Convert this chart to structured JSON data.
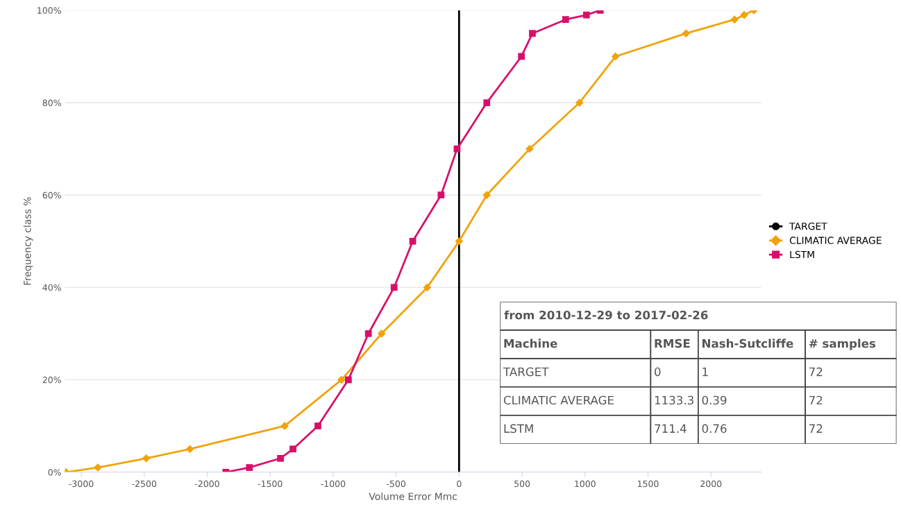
{
  "chart_data": {
    "type": "line",
    "xlabel": "Volume Error Mmc",
    "ylabel": "Frequency class %",
    "xlim": [
      -3130,
      2400
    ],
    "xticks": [
      -3000,
      -2500,
      -2000,
      -1500,
      -1000,
      -500,
      0,
      500,
      1000,
      1500,
      2000
    ],
    "ylim": [
      0,
      100
    ],
    "yticks": [
      {
        "value": 0,
        "label": "0%"
      },
      {
        "value": 20,
        "label": "20%"
      },
      {
        "value": 40,
        "label": "40%"
      },
      {
        "value": 60,
        "label": "60%"
      },
      {
        "value": 80,
        "label": "80%"
      },
      {
        "value": 100,
        "label": "100%"
      }
    ],
    "grid": "y",
    "legend": "right",
    "series": [
      {
        "name": "TARGET",
        "color": "#000000",
        "marker": "none",
        "x": [
          0,
          0
        ],
        "values": [
          0,
          100
        ]
      },
      {
        "name": "CLIMATIC AVERAGE",
        "color": "#f0a30a",
        "marker": "diamond",
        "x": [
          -3121,
          -2868,
          -2484,
          -2137,
          -1385,
          -934,
          -615,
          -253,
          0,
          220,
          560,
          956,
          1242,
          1802,
          2187,
          2264,
          2341
        ],
        "values": [
          0,
          1,
          3,
          5,
          10,
          20,
          30,
          40,
          50,
          60,
          70,
          80,
          90,
          95,
          98,
          99,
          100
        ]
      },
      {
        "name": "LSTM",
        "color": "#d80f6a",
        "marker": "square",
        "x": [
          -1852,
          -1665,
          -1418,
          -1319,
          -1121,
          -879,
          -720,
          -516,
          -368,
          -143,
          -16,
          220,
          495,
          582,
          846,
          1011,
          1121
        ],
        "values": [
          0,
          1,
          3,
          5,
          10,
          20,
          30,
          40,
          50,
          60,
          70,
          80,
          90,
          95,
          98,
          99,
          100
        ]
      }
    ],
    "annotations": [
      "from 2010-12-29 to 2017-02-26",
      "Machine",
      "RMSE",
      "Nash-Sutcliffe",
      "# samples",
      "TARGET",
      "0",
      "1",
      "72",
      "CLIMATIC AVERAGE",
      "1133.3",
      "0.39",
      "72",
      "LSTM",
      "711.4",
      "0.76",
      "72"
    ]
  }
}
